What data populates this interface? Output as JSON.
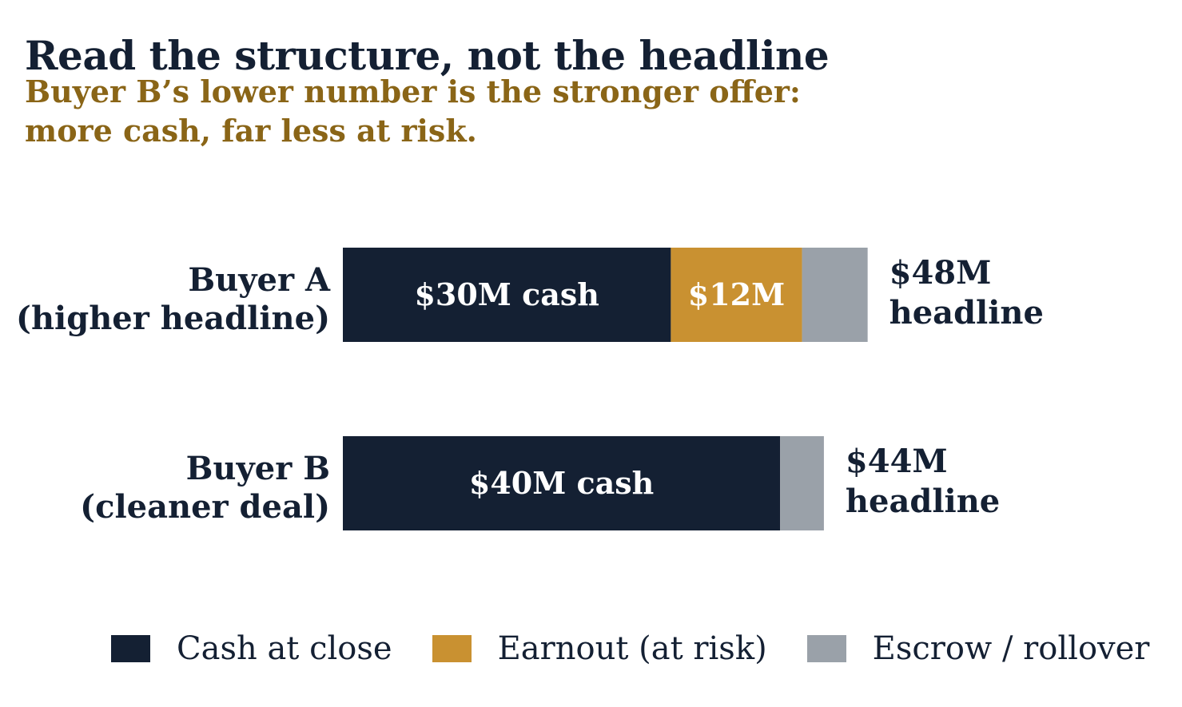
{
  "chart_data": {
    "type": "bar",
    "orientation": "horizontal",
    "stacked": true,
    "title": "Read the structure, not the headline",
    "subtitle": "Buyer B’s lower number is the stronger offer: more cash, far less at risk.",
    "categories": [
      [
        "Buyer A",
        "(higher headline)"
      ],
      [
        "Buyer B",
        "(cleaner deal)"
      ]
    ],
    "series": [
      {
        "name": "Cash at close",
        "color": "#142033",
        "values": [
          30,
          40
        ],
        "labels": [
          "$30M cash",
          "$40M cash"
        ]
      },
      {
        "name": "Earnout (at risk)",
        "color": "#c99131",
        "values": [
          12,
          0
        ],
        "labels": [
          "$12M",
          ""
        ]
      },
      {
        "name": "Escrow / rollover",
        "color": "#9aa1a9",
        "values": [
          6,
          4
        ],
        "labels": [
          "",
          ""
        ]
      }
    ],
    "totals": [
      [
        "$48M",
        "headline"
      ],
      [
        "$44M",
        "headline"
      ]
    ],
    "xlim": [
      0,
      48
    ],
    "grid": false,
    "legend": "bottom"
  }
}
